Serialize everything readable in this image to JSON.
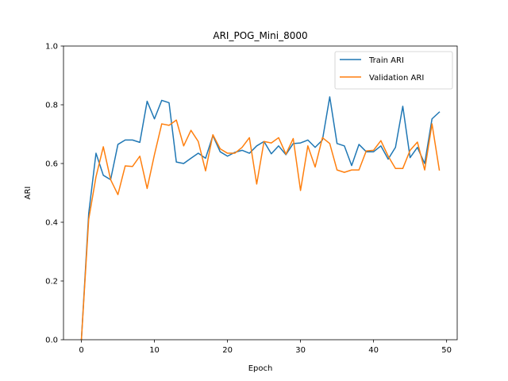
{
  "chart_data": {
    "type": "line",
    "title": "ARI_POG_Mini_8000",
    "xlabel": "Epoch",
    "ylabel": "ARI",
    "xlim": [
      -2.45,
      51.45
    ],
    "ylim": [
      0,
      1.0
    ],
    "xticks": [
      0,
      10,
      20,
      30,
      40,
      50
    ],
    "yticks": [
      0.0,
      0.2,
      0.4,
      0.6,
      0.8,
      1.0
    ],
    "xtick_labels": [
      "0",
      "10",
      "20",
      "30",
      "40",
      "50"
    ],
    "ytick_labels": [
      "0.0",
      "0.2",
      "0.4",
      "0.6",
      "0.8",
      "1.0"
    ],
    "grid": false,
    "legend_position": "top-right",
    "x": [
      0,
      1,
      2,
      3,
      4,
      5,
      6,
      7,
      8,
      9,
      10,
      11,
      12,
      13,
      14,
      15,
      16,
      17,
      18,
      19,
      20,
      21,
      22,
      23,
      24,
      25,
      26,
      27,
      28,
      29,
      30,
      31,
      32,
      33,
      34,
      35,
      36,
      37,
      38,
      39,
      40,
      41,
      42,
      43,
      44,
      45,
      46,
      47,
      48,
      49
    ],
    "series": [
      {
        "name": "Train ARI",
        "color": "#1f77b4",
        "values": [
          0.0,
          0.43,
          0.635,
          0.56,
          0.545,
          0.665,
          0.68,
          0.68,
          0.672,
          0.812,
          0.752,
          0.815,
          0.807,
          0.605,
          0.6,
          0.618,
          0.635,
          0.618,
          0.695,
          0.64,
          0.625,
          0.638,
          0.645,
          0.635,
          0.66,
          0.675,
          0.633,
          0.66,
          0.63,
          0.668,
          0.67,
          0.68,
          0.655,
          0.68,
          0.827,
          0.668,
          0.66,
          0.593,
          0.665,
          0.64,
          0.64,
          0.66,
          0.615,
          0.655,
          0.795,
          0.62,
          0.655,
          0.6,
          0.752,
          0.775
        ]
      },
      {
        "name": "Validation ARI",
        "color": "#ff7f0e",
        "values": [
          0.0,
          0.41,
          0.555,
          0.657,
          0.545,
          0.494,
          0.592,
          0.59,
          0.625,
          0.515,
          0.63,
          0.735,
          0.73,
          0.748,
          0.66,
          0.713,
          0.675,
          0.575,
          0.698,
          0.65,
          0.635,
          0.635,
          0.655,
          0.688,
          0.53,
          0.675,
          0.67,
          0.688,
          0.632,
          0.685,
          0.508,
          0.66,
          0.588,
          0.688,
          0.668,
          0.578,
          0.57,
          0.578,
          0.578,
          0.643,
          0.645,
          0.678,
          0.625,
          0.583,
          0.583,
          0.645,
          0.673,
          0.578,
          0.735,
          0.578
        ]
      }
    ]
  }
}
